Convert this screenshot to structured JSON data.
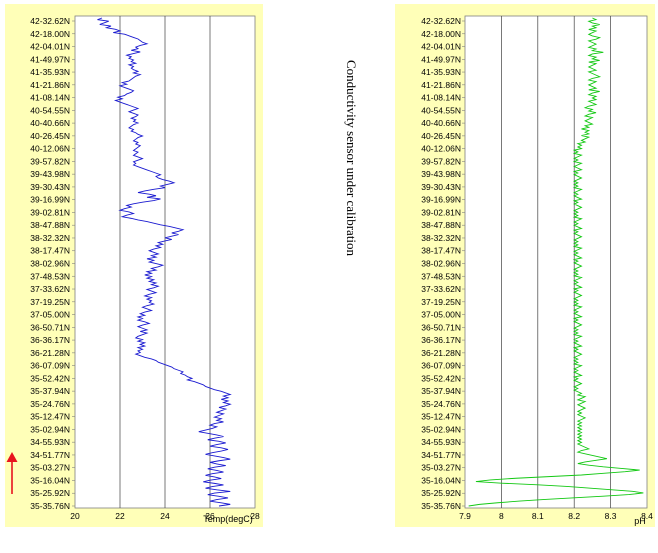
{
  "note": "Conductivity sensor under calibration",
  "latitude_labels": [
    "42-32.62N",
    "42-18.00N",
    "42-04.01N",
    "41-49.97N",
    "41-35.93N",
    "41-21.86N",
    "41-08.14N",
    "40-54.55N",
    "40-40.66N",
    "40-26.45N",
    "40-12.06N",
    "39-57.82N",
    "39-43.98N",
    "39-30.43N",
    "39-16.99N",
    "39-02.81N",
    "38-47.88N",
    "38-32.32N",
    "38-17.47N",
    "38-02.96N",
    "37-48.53N",
    "37-33.62N",
    "37-19.25N",
    "37-05.00N",
    "36-50.71N",
    "36-36.17N",
    "36-21.28N",
    "36-07.09N",
    "35-52.42N",
    "35-37.94N",
    "35-24.76N",
    "35-12.47N",
    "35-02.94N",
    "34-55.93N",
    "34-51.77N",
    "35-03.27N",
    "35-16.04N",
    "35-25.92N",
    "35-35.76N"
  ],
  "arrow_color": "#e8141e",
  "chart_data": [
    {
      "type": "line",
      "xlabel": "Temp(degC)",
      "xlim": [
        20,
        28
      ],
      "xticks": [
        "20",
        "22",
        "24",
        "26",
        "28"
      ],
      "line_color": "#1a1ad0",
      "background": "#ffffb8",
      "grid": true,
      "series": [
        {
          "x": [
            21.2,
            21.0,
            21.5,
            21.3,
            21.1,
            21.6,
            21.4,
            21.8,
            22.0,
            21.7,
            22.2,
            22.4,
            22.6,
            22.8,
            22.9,
            23.0,
            23.2,
            22.9,
            22.7,
            22.8,
            22.5,
            22.9,
            22.6,
            22.3,
            22.5,
            22.4,
            22.6,
            22.5,
            22.7,
            22.4,
            22.6,
            22.5,
            22.6,
            22.8,
            22.6,
            22.9,
            22.7,
            22.6,
            22.5,
            22.4,
            22.1,
            22.3,
            22.0,
            22.2,
            22.4,
            22.6,
            22.5,
            22.3,
            22.2,
            21.9,
            22.1,
            21.8,
            22.0,
            22.2,
            22.4,
            22.6,
            22.8,
            22.6,
            22.4,
            22.6,
            22.8,
            22.7,
            22.5,
            22.7,
            22.6,
            22.8,
            22.6,
            22.5,
            22.4,
            22.6,
            22.5,
            22.7,
            22.8,
            23.0,
            22.8,
            22.7,
            22.6,
            22.8,
            22.7,
            22.9,
            22.8,
            22.7,
            22.6,
            22.8,
            22.7,
            22.6,
            22.8,
            23.0,
            22.8,
            22.6,
            22.7,
            22.6,
            22.8,
            23.0,
            23.2,
            23.4,
            23.6,
            23.8,
            23.6,
            23.7,
            23.9,
            24.2,
            24.4,
            24.1,
            23.8,
            24.0,
            23.5,
            23.1,
            22.8,
            23.3,
            23.6,
            23.2,
            23.8,
            23.5,
            23.0,
            22.6,
            22.3,
            22.5,
            22.2,
            22.0,
            22.4,
            22.6,
            22.3,
            22.1,
            22.5,
            22.8,
            23.2,
            23.5,
            23.8,
            24.2,
            24.5,
            24.8,
            24.6,
            24.3,
            24.6,
            24.3,
            24.0,
            24.3,
            24.0,
            23.7,
            23.9,
            23.6,
            23.8,
            23.5,
            23.3,
            23.5,
            23.7,
            23.4,
            23.6,
            23.2,
            23.5,
            23.3,
            23.6,
            23.9,
            23.7,
            23.4,
            23.6,
            23.2,
            23.4,
            23.1,
            23.4,
            23.2,
            23.5,
            23.3,
            23.6,
            23.4,
            23.7,
            23.5,
            23.2,
            23.4,
            23.6,
            23.3,
            23.1,
            23.4,
            23.2,
            23.4,
            23.3,
            23.5,
            23.2,
            23.0,
            23.2,
            23.4,
            23.1,
            22.9,
            23.1,
            22.8,
            23.0,
            22.8,
            23.1,
            23.3,
            23.0,
            22.8,
            23.0,
            23.2,
            22.9,
            23.2,
            23.0,
            22.8,
            22.7,
            23.0,
            22.8,
            23.1,
            22.9,
            23.1,
            22.8,
            23.0,
            22.8,
            22.9,
            22.7,
            22.9,
            23.1,
            23.4,
            23.6,
            23.7,
            23.9,
            24.1,
            24.3,
            24.4,
            24.6,
            24.8,
            24.7,
            24.9,
            25.0,
            25.2,
            25.0,
            25.3,
            25.5,
            25.7,
            25.8,
            26.0,
            26.2,
            26.5,
            26.7,
            26.9,
            26.6,
            26.8,
            26.5,
            26.8,
            26.6,
            26.9,
            26.7,
            26.4,
            26.7,
            26.5,
            26.3,
            26.6,
            26.4,
            26.2,
            26.5,
            26.3,
            26.6,
            26.2,
            26.0,
            26.3,
            26.1,
            25.8,
            25.5,
            25.9,
            26.3,
            26.6,
            26.2,
            25.9,
            26.4,
            26.7,
            26.3,
            26.0,
            26.5,
            26.8,
            26.5,
            26.1,
            25.8,
            26.2,
            26.6,
            26.9,
            26.4,
            26.0,
            26.3,
            26.7,
            26.2,
            25.9,
            26.3,
            26.6,
            26.1,
            25.8,
            26.2,
            26.5,
            26.0,
            25.7,
            26.2,
            26.6,
            26.1,
            25.8,
            26.3,
            26.9,
            26.2,
            25.9,
            26.4,
            26.8,
            26.3,
            26.0,
            26.5,
            26.9,
            26.4
          ]
        }
      ]
    },
    {
      "type": "line",
      "xlabel": "pH",
      "xlim": [
        7.9,
        8.4
      ],
      "xticks": [
        "7.9",
        "8",
        "8.1",
        "8.2",
        "8.3",
        "8.4"
      ],
      "line_color": "#12c812",
      "background": "#ffffb8",
      "grid": true,
      "series": [
        {
          "x": [
            8.25,
            8.26,
            8.24,
            8.25,
            8.27,
            8.25,
            8.26,
            8.24,
            8.26,
            8.25,
            8.24,
            8.25,
            8.27,
            8.26,
            8.24,
            8.25,
            8.26,
            8.25,
            8.24,
            8.26,
            8.25,
            8.28,
            8.25,
            8.24,
            8.26,
            8.25,
            8.27,
            8.24,
            8.26,
            8.25,
            8.24,
            8.25,
            8.26,
            8.24,
            8.25,
            8.26,
            8.27,
            8.25,
            8.24,
            8.26,
            8.25,
            8.24,
            8.25,
            8.26,
            8.24,
            8.27,
            8.25,
            8.24,
            8.26,
            8.25,
            8.26,
            8.24,
            8.25,
            8.26,
            8.24,
            8.23,
            8.25,
            8.24,
            8.26,
            8.24,
            8.23,
            8.25,
            8.24,
            8.23,
            8.24,
            8.25,
            8.23,
            8.24,
            8.22,
            8.24,
            8.23,
            8.24,
            8.22,
            8.24,
            8.23,
            8.22,
            8.23,
            8.21,
            8.22,
            8.21,
            8.22,
            8.2,
            8.21,
            8.2,
            8.22,
            8.21,
            8.2,
            8.21,
            8.2,
            8.22,
            8.21,
            8.2,
            8.21,
            8.22,
            8.2,
            8.21,
            8.2,
            8.21,
            8.22,
            8.21,
            8.2,
            8.21,
            8.2,
            8.21,
            8.2,
            8.22,
            8.21,
            8.2,
            8.21,
            8.2,
            8.21,
            8.22,
            8.2,
            8.21,
            8.2,
            8.21,
            8.22,
            8.21,
            8.2,
            8.21,
            8.2,
            8.21,
            8.2,
            8.22,
            8.21,
            8.2,
            8.21,
            8.2,
            8.21,
            8.22,
            8.2,
            8.21,
            8.2,
            8.21,
            8.22,
            8.21,
            8.2,
            8.21,
            8.2,
            8.21,
            8.2,
            8.22,
            8.21,
            8.2,
            8.21,
            8.2,
            8.21,
            8.22,
            8.2,
            8.21,
            8.2,
            8.21,
            8.22,
            8.21,
            8.2,
            8.21,
            8.2,
            8.21,
            8.2,
            8.22,
            8.21,
            8.2,
            8.21,
            8.2,
            8.21,
            8.22,
            8.2,
            8.21,
            8.2,
            8.21,
            8.22,
            8.21,
            8.2,
            8.21,
            8.2,
            8.21,
            8.2,
            8.22,
            8.21,
            8.2,
            8.21,
            8.2,
            8.21,
            8.22,
            8.2,
            8.21,
            8.2,
            8.21,
            8.22,
            8.21,
            8.2,
            8.21,
            8.2,
            8.21,
            8.2,
            8.22,
            8.21,
            8.2,
            8.21,
            8.2,
            8.21,
            8.22,
            8.2,
            8.21,
            8.2,
            8.21,
            8.22,
            8.21,
            8.2,
            8.21,
            8.2,
            8.21,
            8.2,
            8.22,
            8.21,
            8.2,
            8.21,
            8.2,
            8.21,
            8.22,
            8.2,
            8.21,
            8.2,
            8.21,
            8.22,
            8.21,
            8.2,
            8.21,
            8.2,
            8.21,
            8.22,
            8.21,
            8.23,
            8.22,
            8.21,
            8.23,
            8.22,
            8.21,
            8.22,
            8.23,
            8.22,
            8.21,
            8.22,
            8.21,
            8.22,
            8.23,
            8.22,
            8.21,
            8.22,
            8.21,
            8.22,
            8.21,
            8.22,
            8.21,
            8.22,
            8.21,
            8.22,
            8.21,
            8.22,
            8.21,
            8.22,
            8.21,
            8.22,
            8.23,
            8.24,
            8.22,
            8.21,
            8.23,
            8.25,
            8.27,
            8.29,
            8.26,
            8.23,
            8.21,
            8.24,
            8.28,
            8.33,
            8.38,
            8.34,
            8.28,
            8.22,
            8.13,
            8.04,
            7.97,
            7.93,
            8.0,
            8.1,
            8.18,
            8.24,
            8.3,
            8.36,
            8.39,
            8.35,
            8.28,
            8.2,
            8.12,
            8.05,
            7.99,
            7.94,
            7.91
          ]
        }
      ]
    }
  ]
}
